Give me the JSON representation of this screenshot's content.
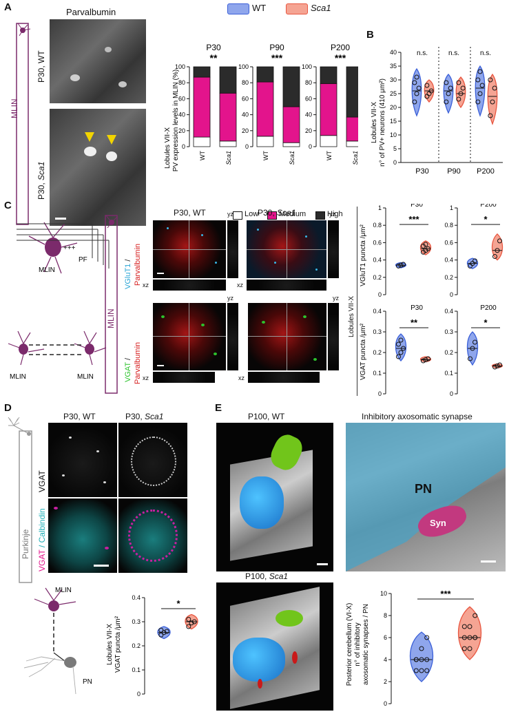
{
  "panels": {
    "A": "A",
    "B": "B",
    "C": "C",
    "D": "D",
    "E": "E"
  },
  "legend_top": {
    "wt": "WT",
    "sca1": "Sca1"
  },
  "panel_a": {
    "stain": "Parvalbumin",
    "side_label": "MLIN",
    "img1_label": "P30, WT",
    "img2_label_prefix": "P30, ",
    "img2_label_italic": "Sca1",
    "ylabel_line1": "Lobules VII-X",
    "ylabel_line2": "PV expression levels in MLIN (%)",
    "legend": {
      "low": "Low",
      "medium": "Medium",
      "high": "High"
    }
  },
  "panel_b": {
    "ylabel_line1": "Lobules VII-X",
    "ylabel_line2": "n° of PV+ neurons (410 μm²)",
    "ns": "n.s."
  },
  "panel_c": {
    "pf": "PF",
    "plus": "+++",
    "mlin": "MLIN",
    "vglut": "VGluT1",
    "vgat": "VGAT",
    "slash": " /",
    "parv": "Parvalbumin",
    "img_wt": "P30, WT",
    "img_sca_prefix": "P30, ",
    "img_sca_italic": "Sca1",
    "yz": "yz",
    "xz": "xz",
    "lobules": "Lobules VII-X",
    "ylabel_top": "VGluT1 puncta /μm²",
    "ylabel_bottom": "VGAT puncta /μm²"
  },
  "panel_d": {
    "purkinje": "Purkinje",
    "img_wt": "P30, WT",
    "img_sca_prefix": "P30, ",
    "img_sca_italic": "Sca1",
    "vgat": "VGAT",
    "vgat2": "VGAT",
    "calb": " / Calbindin",
    "mlin": "MLIN",
    "pn": "PN",
    "ylabel_line1": "Lobules VII-X",
    "ylabel_line2": "VGAT puncta /μm²"
  },
  "panel_e": {
    "img_wt": "P100, WT",
    "img_sca_prefix": "P100, ",
    "img_sca_italic": "Sca1",
    "synapse_title": "Inhibitory axosomatic synapse",
    "pn": "PN",
    "syn": "Syn",
    "ylabel_line1": "Posterior cerebellum (VI-X)",
    "ylabel_line2": "n° of inhibitory",
    "ylabel_line3": "axosomatic synapses / PN"
  },
  "colors": {
    "wt": "#3a5fd8",
    "wt_fill": "#8fa6ec",
    "sca1": "#e8553f",
    "sca1_fill": "#f5a493",
    "medium": "#e3148c",
    "high": "#2b2b2b",
    "low": "#ffffff",
    "mlin": "#7b2a6b"
  },
  "chart_data": [
    {
      "id": "A-P30",
      "type": "bar",
      "stacked": true,
      "title": "P30",
      "significance": "**",
      "categories": [
        "WT",
        "Sca1"
      ],
      "series": [
        {
          "name": "Low",
          "values": [
            12,
            7
          ]
        },
        {
          "name": "Medium",
          "values": [
            75,
            60
          ]
        },
        {
          "name": "High",
          "values": [
            13,
            33
          ]
        }
      ],
      "ylim": [
        0,
        100
      ],
      "yticks": [
        0,
        20,
        40,
        60,
        80,
        100
      ]
    },
    {
      "id": "A-P90",
      "type": "bar",
      "stacked": true,
      "title": "P90",
      "significance": "***",
      "categories": [
        "WT",
        "Sca1"
      ],
      "series": [
        {
          "name": "Low",
          "values": [
            13,
            5
          ]
        },
        {
          "name": "Medium",
          "values": [
            68,
            45
          ]
        },
        {
          "name": "High",
          "values": [
            19,
            50
          ]
        }
      ],
      "ylim": [
        0,
        100
      ],
      "yticks": [
        0,
        20,
        40,
        60,
        80,
        100
      ]
    },
    {
      "id": "A-P200",
      "type": "bar",
      "stacked": true,
      "title": "P200",
      "significance": "***",
      "categories": [
        "WT",
        "Sca1"
      ],
      "series": [
        {
          "name": "Low",
          "values": [
            14,
            7
          ]
        },
        {
          "name": "Medium",
          "values": [
            65,
            30
          ]
        },
        {
          "name": "High",
          "values": [
            21,
            63
          ]
        }
      ],
      "ylim": [
        0,
        100
      ],
      "yticks": [
        0,
        20,
        40,
        60,
        80,
        100
      ]
    },
    {
      "id": "B",
      "type": "violin",
      "categories": [
        "P30",
        "P90",
        "P200"
      ],
      "significance": [
        "n.s.",
        "n.s.",
        "n.s."
      ],
      "groups": [
        {
          "cat": "P30",
          "genotype": "WT",
          "points": [
            22,
            25,
            27,
            29,
            31
          ],
          "median": 26,
          "range": [
            17,
            34
          ]
        },
        {
          "cat": "P30",
          "genotype": "Sca1",
          "points": [
            24,
            25,
            26,
            28
          ],
          "median": 26,
          "range": [
            22,
            30
          ]
        },
        {
          "cat": "P90",
          "genotype": "WT",
          "points": [
            22,
            25,
            27,
            29
          ],
          "median": 26,
          "range": [
            18,
            32
          ]
        },
        {
          "cat": "P90",
          "genotype": "Sca1",
          "points": [
            23,
            25,
            27,
            29
          ],
          "median": 25,
          "range": [
            20,
            31
          ]
        },
        {
          "cat": "P200",
          "genotype": "WT",
          "points": [
            22,
            25,
            28,
            30,
            33
          ],
          "median": 27,
          "range": [
            17,
            35
          ]
        },
        {
          "cat": "P200",
          "genotype": "Sca1",
          "points": [
            17,
            22,
            27,
            30
          ],
          "median": 24,
          "range": [
            14,
            32
          ]
        }
      ],
      "ylim": [
        0,
        40
      ],
      "yticks": [
        0,
        5,
        10,
        15,
        20,
        25,
        30,
        35,
        40
      ]
    },
    {
      "id": "C-VGluT1-P30",
      "type": "violin",
      "title": "P30",
      "significance": "***",
      "groups": [
        {
          "genotype": "WT",
          "points": [
            0.33,
            0.34,
            0.35
          ],
          "median": 0.34,
          "range": [
            0.31,
            0.37
          ]
        },
        {
          "genotype": "Sca1",
          "points": [
            0.49,
            0.51,
            0.53,
            0.56,
            0.58
          ],
          "median": 0.53,
          "range": [
            0.46,
            0.62
          ]
        }
      ],
      "ylim": [
        0,
        1.0
      ],
      "yticks": [
        0.0,
        0.2,
        0.4,
        0.6,
        0.8,
        1.0
      ]
    },
    {
      "id": "C-VGluT1-P200",
      "type": "violin",
      "title": "P200",
      "significance": "*",
      "groups": [
        {
          "genotype": "WT",
          "points": [
            0.33,
            0.36,
            0.39
          ],
          "median": 0.36,
          "range": [
            0.3,
            0.42
          ]
        },
        {
          "genotype": "Sca1",
          "points": [
            0.44,
            0.51,
            0.62
          ],
          "median": 0.51,
          "range": [
            0.4,
            0.7
          ]
        }
      ],
      "ylim": [
        0,
        1.0
      ],
      "yticks": [
        0.0,
        0.2,
        0.4,
        0.6,
        0.8,
        1.0
      ]
    },
    {
      "id": "C-VGAT-P30",
      "type": "violin",
      "title": "P30",
      "significance": "**",
      "groups": [
        {
          "genotype": "WT",
          "points": [
            0.18,
            0.2,
            0.22,
            0.24,
            0.26
          ],
          "median": 0.22,
          "range": [
            0.16,
            0.29
          ]
        },
        {
          "genotype": "Sca1",
          "points": [
            0.16,
            0.165,
            0.17
          ],
          "median": 0.165,
          "range": [
            0.155,
            0.18
          ]
        }
      ],
      "ylim": [
        0,
        0.4
      ],
      "yticks": [
        0.0,
        0.1,
        0.2,
        0.3,
        0.4
      ]
    },
    {
      "id": "C-VGAT-P200",
      "type": "violin",
      "title": "P200",
      "significance": "*",
      "groups": [
        {
          "genotype": "WT",
          "points": [
            0.17,
            0.22,
            0.25
          ],
          "median": 0.22,
          "range": [
            0.14,
            0.3
          ]
        },
        {
          "genotype": "Sca1",
          "points": [
            0.13,
            0.135,
            0.14
          ],
          "median": 0.135,
          "range": [
            0.125,
            0.145
          ]
        }
      ],
      "ylim": [
        0,
        0.4
      ],
      "yticks": [
        0.0,
        0.1,
        0.2,
        0.3,
        0.4
      ]
    },
    {
      "id": "D",
      "type": "violin",
      "significance": "*",
      "groups": [
        {
          "genotype": "WT",
          "points": [
            0.245,
            0.255,
            0.26,
            0.265
          ],
          "median": 0.255,
          "range": [
            0.23,
            0.28
          ]
        },
        {
          "genotype": "Sca1",
          "points": [
            0.28,
            0.295,
            0.3,
            0.31
          ],
          "median": 0.3,
          "range": [
            0.27,
            0.33
          ]
        }
      ],
      "ylim": [
        0,
        0.4
      ],
      "yticks": [
        0.0,
        0.1,
        0.2,
        0.3,
        0.4
      ]
    },
    {
      "id": "E",
      "type": "violin",
      "significance": "***",
      "groups": [
        {
          "genotype": "WT",
          "points": [
            3,
            3,
            3,
            4,
            4,
            4,
            4,
            5,
            6
          ],
          "median": 4,
          "range": [
            2,
            6.5
          ]
        },
        {
          "genotype": "Sca1",
          "points": [
            5,
            5,
            6,
            6,
            6,
            6,
            7,
            7,
            8
          ],
          "median": 6,
          "range": [
            4,
            8.8
          ]
        }
      ],
      "ylim": [
        0,
        10
      ],
      "yticks": [
        0,
        2,
        4,
        6,
        8,
        10
      ]
    }
  ]
}
